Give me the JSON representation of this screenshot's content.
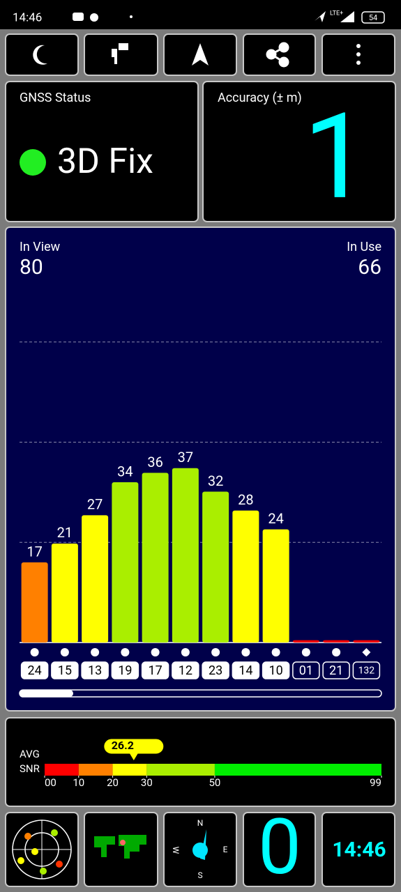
{
  "status_bar": {
    "time": "14:46",
    "network": "LTE+",
    "battery": "54"
  },
  "gnss_status": {
    "title": "GNSS Status",
    "status": "3D Fix"
  },
  "accuracy": {
    "title": "Accuracy (± m)",
    "value": 1
  },
  "satellites": {
    "in_view_label": "In View",
    "in_view": 80,
    "in_use_label": "In Use",
    "in_use": 66
  },
  "chart_data": {
    "type": "bar",
    "categories": [
      "24",
      "15",
      "13",
      "19",
      "17",
      "12",
      "23",
      "14",
      "10",
      "01",
      "21",
      "132"
    ],
    "values": [
      17,
      21,
      27,
      34,
      36,
      37,
      32,
      28,
      24,
      0.5,
      0.5,
      0.5
    ],
    "colors": [
      "#ff8000",
      "#ffff00",
      "#ffff00",
      "#aaee00",
      "#aaee00",
      "#aaee00",
      "#aaee00",
      "#ffff00",
      "#ffff00",
      "#ee0000",
      "#ee0000",
      "#ee0000"
    ],
    "in_use": [
      true,
      true,
      true,
      true,
      true,
      true,
      true,
      true,
      true,
      false,
      false,
      false
    ],
    "markers": [
      "circle",
      "circle",
      "circle",
      "circle",
      "circle",
      "circle",
      "circle",
      "circle",
      "circle",
      "circle",
      "circle",
      "diamond"
    ],
    "ylim": [
      0,
      85
    ],
    "grid_lines": [
      21.25,
      42.5,
      63.75
    ]
  },
  "snr_scale": {
    "labels": [
      "AVG",
      "SNR"
    ],
    "average": 26.2,
    "xlim": [
      0,
      99
    ],
    "xticks": [
      {
        "value": 0,
        "label": "00"
      },
      10,
      20,
      30,
      50,
      99
    ],
    "segment_colors": [
      "#ff0000",
      "#ff8000",
      "#ffff00",
      "#aaee00",
      "#00ee00"
    ]
  },
  "compass": {
    "north": "N",
    "east": "E",
    "south": "S",
    "west": "W"
  },
  "speed": 0,
  "clock": "14:46"
}
